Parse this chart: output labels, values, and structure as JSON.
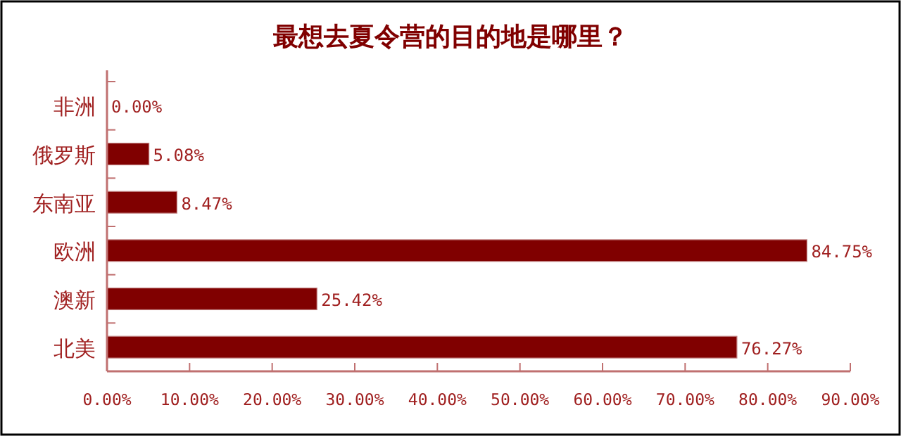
{
  "chart_data": {
    "type": "bar",
    "orientation": "horizontal",
    "title": "最想去夏令营的目的地是哪里？",
    "categories": [
      "非洲",
      "俄罗斯",
      "东南亚",
      "欧洲",
      "澳新",
      "北美"
    ],
    "values": [
      0,
      5.08,
      8.47,
      84.75,
      25.42,
      76.27
    ],
    "value_labels": [
      "0.00%",
      "5.08%",
      "8.47%",
      "84.75%",
      "25.42%",
      "76.27%"
    ],
    "color": "#800000",
    "xlim": [
      0,
      90
    ],
    "xticks": [
      {
        "value": 0,
        "label": "0.00%"
      },
      {
        "value": 10,
        "label": "10.00%"
      },
      {
        "value": 20,
        "label": "20.00%"
      },
      {
        "value": 30,
        "label": "30.00%"
      },
      {
        "value": 40,
        "label": "40.00%"
      },
      {
        "value": 50,
        "label": "50.00%"
      },
      {
        "value": 60,
        "label": "60.00%"
      },
      {
        "value": 70,
        "label": "70.00%"
      },
      {
        "value": 80,
        "label": "80.00%"
      },
      {
        "value": 90,
        "label": "90.00%"
      }
    ],
    "grid": false
  }
}
